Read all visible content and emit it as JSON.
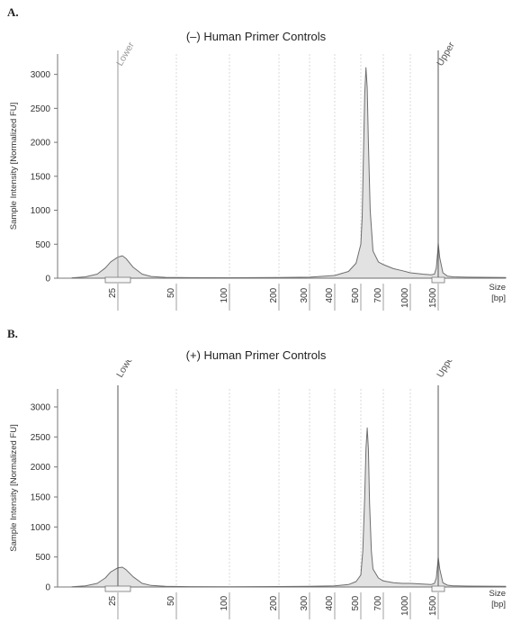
{
  "panels": [
    {
      "label": "A.",
      "title": "(–) Human Primer Controls"
    },
    {
      "label": "B.",
      "title": "(+) Human Primer Controls"
    }
  ],
  "chart_data": [
    {
      "type": "area",
      "title": "(–) Human Primer Controls",
      "ylabel": "Sample Intensity [Normalized FU]",
      "xlabel": "Size [bp]",
      "xlabel_lines": [
        "Size",
        "[bp]"
      ],
      "x_ticks": [
        "25",
        "50",
        "100",
        "200",
        "300",
        "400",
        "500",
        "700",
        "1000",
        "1500"
      ],
      "y_ticks": [
        0,
        500,
        1000,
        1500,
        2000,
        2500,
        3000
      ],
      "ylim": [
        0,
        3300
      ],
      "markers": [
        {
          "name": "Lower",
          "x": 25,
          "color": "#9a9a9a"
        },
        {
          "name": "Upper",
          "x": 1500,
          "color": "#555555"
        }
      ],
      "grid": "vertical-dashed",
      "series": [
        {
          "x": [
            15,
            18,
            21,
            23,
            24,
            25,
            26,
            27,
            29,
            32,
            36,
            45,
            60,
            100,
            200,
            300,
            400,
            450,
            480,
            500,
            510,
            520,
            530,
            540,
            550,
            560,
            575,
            600,
            650,
            700,
            800,
            900,
            1000,
            1200,
            1350,
            1420,
            1460,
            1490,
            1500,
            1510,
            1530,
            1560,
            1600,
            1700,
            2000
          ],
          "y": [
            5,
            20,
            60,
            150,
            240,
            310,
            330,
            290,
            160,
            60,
            25,
            12,
            8,
            6,
            10,
            15,
            40,
            100,
            220,
            500,
            900,
            1800,
            2700,
            3100,
            2800,
            2000,
            1000,
            400,
            240,
            200,
            140,
            110,
            80,
            60,
            50,
            60,
            150,
            400,
            520,
            300,
            80,
            30,
            20,
            15,
            10
          ]
        }
      ]
    },
    {
      "type": "area",
      "title": "(+) Human Primer Controls",
      "ylabel": "Sample Intensity [Normalized FU]",
      "xlabel": "Size [bp]",
      "xlabel_lines": [
        "Size",
        "[bp]"
      ],
      "x_ticks": [
        "25",
        "50",
        "100",
        "200",
        "300",
        "400",
        "500",
        "700",
        "1000",
        "1500"
      ],
      "y_ticks": [
        0,
        500,
        1000,
        1500,
        2000,
        2500,
        3000
      ],
      "ylim": [
        0,
        3300
      ],
      "markers": [
        {
          "name": "Lower",
          "x": 25,
          "color": "#555555"
        },
        {
          "name": "Upper",
          "x": 1500,
          "color": "#555555"
        }
      ],
      "grid": "vertical-dashed",
      "series": [
        {
          "x": [
            15,
            18,
            21,
            23,
            24,
            25,
            26,
            27,
            29,
            32,
            36,
            45,
            60,
            100,
            200,
            300,
            400,
            450,
            480,
            500,
            515,
            530,
            540,
            550,
            560,
            570,
            585,
            600,
            650,
            700,
            800,
            900,
            1000,
            1200,
            1350,
            1420,
            1460,
            1490,
            1500,
            1510,
            1530,
            1560,
            1600,
            1700,
            2000
          ],
          "y": [
            5,
            20,
            60,
            150,
            250,
            320,
            330,
            290,
            170,
            60,
            25,
            10,
            6,
            5,
            8,
            10,
            20,
            40,
            90,
            200,
            600,
            1500,
            2300,
            2650,
            2300,
            1400,
            600,
            300,
            150,
            100,
            70,
            60,
            60,
            50,
            40,
            60,
            150,
            400,
            500,
            300,
            70,
            30,
            20,
            15,
            10
          ]
        }
      ]
    }
  ]
}
